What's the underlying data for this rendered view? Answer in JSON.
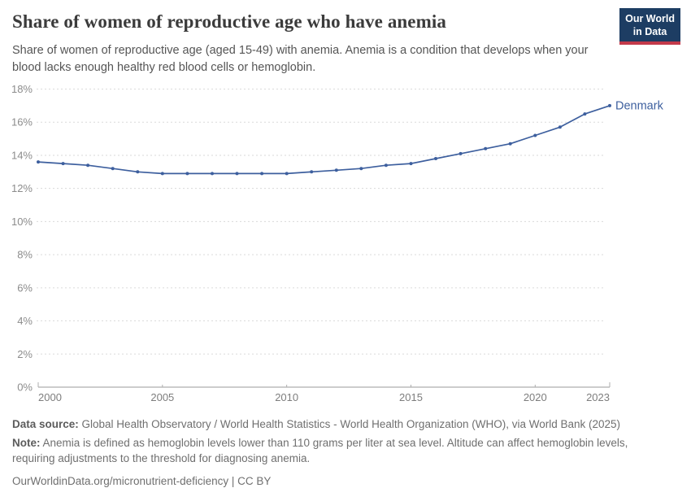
{
  "header": {
    "title": "Share of women of reproductive age who have anemia",
    "subtitle": "Share of women of reproductive age (aged 15-49) with anemia. Anemia is a condition that develops when your blood lacks enough healthy red blood cells or hemoglobin.",
    "logo": {
      "line1": "Our World",
      "line2": "in Data"
    }
  },
  "brand_colors": {
    "logo_navy": "#1d3d63",
    "logo_red": "#c33a4a",
    "line_blue": "#3d5f9e"
  },
  "chart_data": {
    "type": "line",
    "title": "Share of women of reproductive age who have anemia",
    "xlabel": "",
    "ylabel": "",
    "unit": "%",
    "x": [
      2000,
      2001,
      2002,
      2003,
      2004,
      2005,
      2006,
      2007,
      2008,
      2009,
      2010,
      2011,
      2012,
      2013,
      2014,
      2015,
      2016,
      2017,
      2018,
      2019,
      2020,
      2021,
      2022,
      2023
    ],
    "series": [
      {
        "name": "Denmark",
        "color": "#3d5f9e",
        "values": [
          13.6,
          13.5,
          13.4,
          13.2,
          13.0,
          12.9,
          12.9,
          12.9,
          12.9,
          12.9,
          12.9,
          13.0,
          13.1,
          13.2,
          13.4,
          13.5,
          13.8,
          14.1,
          14.4,
          14.7,
          15.2,
          15.7,
          16.5,
          17.0
        ]
      }
    ],
    "xlim": [
      2000,
      2023
    ],
    "ylim": [
      0,
      18
    ],
    "x_ticks": [
      2000,
      2005,
      2010,
      2015,
      2020,
      2023
    ],
    "y_ticks": [
      0,
      2,
      4,
      6,
      8,
      10,
      12,
      14,
      16,
      18
    ],
    "y_tick_suffix": "%",
    "grid": "horizontal-dashed",
    "legend": "end-of-line-label"
  },
  "footer": {
    "data_source_label": "Data source:",
    "data_source_text": " Global Health Observatory / World Health Statistics - World Health Organization (WHO), via World Bank (2025)",
    "note_label": "Note:",
    "note_text": " Anemia is defined as hemoglobin levels lower than 110 grams per liter at sea level. Altitude can affect hemoglobin levels, requiring adjustments to the threshold for diagnosing anemia.",
    "citation_url": "OurWorldinData.org/micronutrient-deficiency",
    "separator": " | ",
    "license": "CC BY"
  }
}
